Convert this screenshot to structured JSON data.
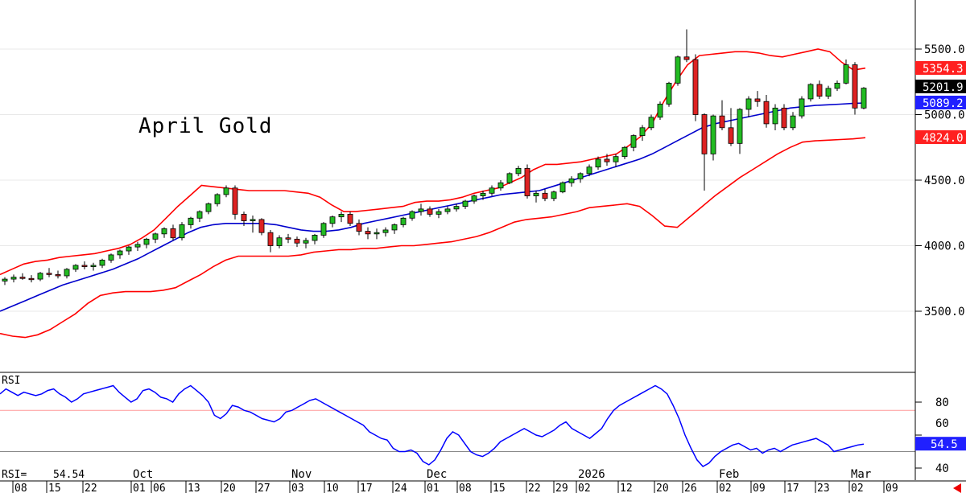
{
  "chart_data": [
    {
      "type": "candlestick",
      "title": "April Gold",
      "ylim": [
        3200,
        5700
      ],
      "y_ticks": [
        3500.0,
        4000.0,
        4500.0,
        5000.0,
        5500.0
      ],
      "y_tick_labels": [
        "3500.0",
        "4000.0",
        "4500.0",
        "5000.0",
        "5500.0"
      ],
      "month_labels": [
        "Oct",
        "Nov",
        "Dec",
        "2026",
        "Feb",
        "Mar"
      ],
      "day_labels": [
        "08",
        "15",
        "22",
        "01",
        "06",
        "13",
        "20",
        "27",
        "03",
        "10",
        "17",
        "24",
        "01",
        "08",
        "15",
        "22",
        "29",
        "02",
        "12",
        "20",
        "26",
        "02",
        "09",
        "17",
        "23",
        "02",
        "09"
      ],
      "price_labels": [
        {
          "value": 5354.3,
          "text": "5354.3",
          "color": "#ff2020"
        },
        {
          "value": 5201.9,
          "text": "5201.9",
          "color": "#000000"
        },
        {
          "value": 5089.2,
          "text": "5089.2",
          "color": "#2020ff"
        },
        {
          "value": 4824.0,
          "text": "4824.0",
          "color": "#ff2020"
        }
      ],
      "series": [
        {
          "name": "",
          "color": "#ff0000",
          "values": [
            3780,
            3820,
            3860,
            3880,
            3890,
            3910,
            3920,
            3930,
            3940,
            3960,
            3980,
            4010,
            4060,
            4120,
            4210,
            4300,
            4380,
            4460,
            4450,
            4440,
            4430,
            4420,
            4420,
            4420,
            4420,
            4410,
            4400,
            4370,
            4310,
            4260,
            4260,
            4270,
            4280,
            4290,
            4300,
            4330,
            4340,
            4340,
            4350,
            4370,
            4400,
            4420,
            4440,
            4480,
            4520,
            4580,
            4620,
            4620,
            4630,
            4640,
            4660,
            4680,
            4700,
            4760,
            4830,
            4930,
            5100,
            5250,
            5380,
            5450,
            5460,
            5470,
            5480,
            5480,
            5470,
            5450,
            5440,
            5460,
            5480,
            5500,
            5480,
            5400,
            5340,
            5354.3
          ]
        },
        {
          "name": "",
          "color": "#0000cc",
          "values": [
            3500,
            3540,
            3580,
            3620,
            3660,
            3700,
            3730,
            3760,
            3790,
            3820,
            3860,
            3900,
            3950,
            4000,
            4050,
            4100,
            4140,
            4160,
            4170,
            4170,
            4170,
            4170,
            4160,
            4140,
            4120,
            4110,
            4110,
            4120,
            4140,
            4170,
            4190,
            4210,
            4230,
            4250,
            4270,
            4290,
            4310,
            4330,
            4350,
            4370,
            4390,
            4400,
            4410,
            4420,
            4450,
            4480,
            4510,
            4540,
            4570,
            4600,
            4630,
            4660,
            4700,
            4750,
            4800,
            4850,
            4900,
            4930,
            4950,
            4970,
            4990,
            5010,
            5030,
            5050,
            5060,
            5070,
            5075,
            5080,
            5085,
            5089.2
          ]
        },
        {
          "name": "",
          "color": "#ff0000",
          "values": [
            3330,
            3310,
            3300,
            3320,
            3360,
            3420,
            3480,
            3560,
            3620,
            3640,
            3650,
            3650,
            3650,
            3660,
            3680,
            3730,
            3780,
            3840,
            3890,
            3920,
            3920,
            3920,
            3920,
            3920,
            3930,
            3950,
            3960,
            3970,
            3970,
            3980,
            3980,
            3990,
            4000,
            4000,
            4010,
            4020,
            4030,
            4050,
            4070,
            4100,
            4140,
            4180,
            4200,
            4210,
            4220,
            4240,
            4260,
            4290,
            4300,
            4310,
            4320,
            4300,
            4230,
            4150,
            4140,
            4220,
            4300,
            4380,
            4450,
            4520,
            4580,
            4640,
            4700,
            4750,
            4790,
            4800,
            4805,
            4810,
            4815,
            4824.0
          ]
        }
      ],
      "candles_ohlc": [
        [
          3730,
          3760,
          3700,
          3745
        ],
        [
          3745,
          3780,
          3720,
          3760
        ],
        [
          3760,
          3790,
          3740,
          3750
        ],
        [
          3750,
          3775,
          3720,
          3745
        ],
        [
          3745,
          3800,
          3730,
          3790
        ],
        [
          3790,
          3830,
          3760,
          3780
        ],
        [
          3780,
          3810,
          3750,
          3770
        ],
        [
          3770,
          3830,
          3750,
          3820
        ],
        [
          3820,
          3860,
          3800,
          3850
        ],
        [
          3850,
          3880,
          3820,
          3840
        ],
        [
          3840,
          3870,
          3810,
          3850
        ],
        [
          3850,
          3900,
          3830,
          3890
        ],
        [
          3890,
          3940,
          3870,
          3930
        ],
        [
          3930,
          3970,
          3900,
          3960
        ],
        [
          3960,
          4000,
          3930,
          3990
        ],
        [
          3990,
          4030,
          3960,
          4010
        ],
        [
          4010,
          4060,
          3980,
          4050
        ],
        [
          4050,
          4100,
          4020,
          4090
        ],
        [
          4090,
          4140,
          4060,
          4130
        ],
        [
          4130,
          4160,
          4040,
          4060
        ],
        [
          4060,
          4180,
          4040,
          4160
        ],
        [
          4160,
          4220,
          4130,
          4210
        ],
        [
          4210,
          4270,
          4180,
          4260
        ],
        [
          4260,
          4330,
          4240,
          4320
        ],
        [
          4320,
          4400,
          4300,
          4390
        ],
        [
          4390,
          4460,
          4370,
          4440
        ],
        [
          4440,
          4460,
          4200,
          4240
        ],
        [
          4240,
          4260,
          4150,
          4190
        ],
        [
          4190,
          4230,
          4100,
          4200
        ],
        [
          4200,
          4210,
          4080,
          4100
        ],
        [
          4100,
          4120,
          3950,
          4000
        ],
        [
          4000,
          4080,
          3980,
          4060
        ],
        [
          4060,
          4090,
          4020,
          4050
        ],
        [
          4050,
          4070,
          3990,
          4020
        ],
        [
          4020,
          4060,
          3980,
          4040
        ],
        [
          4040,
          4090,
          4010,
          4080
        ],
        [
          4080,
          4180,
          4060,
          4170
        ],
        [
          4170,
          4230,
          4140,
          4220
        ],
        [
          4220,
          4260,
          4180,
          4240
        ],
        [
          4240,
          4260,
          4150,
          4170
        ],
        [
          4170,
          4200,
          4080,
          4110
        ],
        [
          4110,
          4140,
          4050,
          4090
        ],
        [
          4090,
          4130,
          4050,
          4100
        ],
        [
          4100,
          4140,
          4070,
          4120
        ],
        [
          4120,
          4170,
          4090,
          4160
        ],
        [
          4160,
          4220,
          4140,
          4210
        ],
        [
          4210,
          4270,
          4190,
          4260
        ],
        [
          4260,
          4320,
          4230,
          4280
        ],
        [
          4280,
          4300,
          4220,
          4240
        ],
        [
          4240,
          4280,
          4210,
          4260
        ],
        [
          4260,
          4300,
          4240,
          4280
        ],
        [
          4280,
          4320,
          4260,
          4300
        ],
        [
          4300,
          4350,
          4280,
          4340
        ],
        [
          4340,
          4390,
          4320,
          4380
        ],
        [
          4380,
          4420,
          4350,
          4400
        ],
        [
          4400,
          4460,
          4380,
          4440
        ],
        [
          4440,
          4500,
          4420,
          4480
        ],
        [
          4480,
          4560,
          4470,
          4550
        ],
        [
          4550,
          4610,
          4530,
          4590
        ],
        [
          4590,
          4620,
          4360,
          4380
        ],
        [
          4380,
          4420,
          4330,
          4400
        ],
        [
          4400,
          4430,
          4340,
          4360
        ],
        [
          4360,
          4420,
          4340,
          4410
        ],
        [
          4410,
          4490,
          4400,
          4480
        ],
        [
          4480,
          4530,
          4450,
          4510
        ],
        [
          4510,
          4560,
          4480,
          4550
        ],
        [
          4550,
          4620,
          4530,
          4600
        ],
        [
          4600,
          4680,
          4580,
          4660
        ],
        [
          4660,
          4700,
          4610,
          4640
        ],
        [
          4640,
          4700,
          4600,
          4680
        ],
        [
          4680,
          4760,
          4660,
          4750
        ],
        [
          4750,
          4850,
          4720,
          4840
        ],
        [
          4840,
          4920,
          4800,
          4900
        ],
        [
          4900,
          5000,
          4880,
          4980
        ],
        [
          4980,
          5100,
          4960,
          5080
        ],
        [
          5080,
          5250,
          5060,
          5240
        ],
        [
          5240,
          5450,
          5220,
          5440
        ],
        [
          5440,
          5650,
          5400,
          5420
        ],
        [
          5420,
          5460,
          4950,
          5000
        ],
        [
          5000,
          5010,
          4420,
          4700
        ],
        [
          4700,
          5000,
          4650,
          4990
        ],
        [
          4990,
          5110,
          4880,
          4900
        ],
        [
          4900,
          5050,
          4760,
          4780
        ],
        [
          4780,
          5050,
          4700,
          5040
        ],
        [
          5040,
          5140,
          4980,
          5120
        ],
        [
          5120,
          5180,
          5060,
          5100
        ],
        [
          5100,
          5150,
          4900,
          4930
        ],
        [
          4930,
          5080,
          4880,
          5050
        ],
        [
          5050,
          5080,
          4880,
          4900
        ],
        [
          4900,
          5020,
          4880,
          4990
        ],
        [
          4990,
          5140,
          4970,
          5120
        ],
        [
          5120,
          5240,
          5100,
          5230
        ],
        [
          5230,
          5260,
          5120,
          5140
        ],
        [
          5140,
          5220,
          5120,
          5200
        ],
        [
          5200,
          5260,
          5180,
          5240
        ],
        [
          5240,
          5420,
          5230,
          5380
        ],
        [
          5380,
          5400,
          5000,
          5050
        ],
        [
          5050,
          5210,
          5040,
          5201.9
        ]
      ]
    },
    {
      "type": "line",
      "title": "RSI",
      "ylim": [
        36,
        96
      ],
      "y_ticks": [
        40,
        60,
        80
      ],
      "y_tick_labels": [
        "40",
        "60",
        "80"
      ],
      "reference_lines": [
        50,
        75
      ],
      "current_label": "RSI=",
      "current_value": "54.54",
      "current_badge": "54.5",
      "series": [
        {
          "name": "",
          "color": "#0000ff",
          "values": [
            85,
            88,
            86,
            84,
            86,
            85,
            84,
            85,
            87,
            88,
            85,
            83,
            80,
            82,
            85,
            86,
            87,
            88,
            89,
            90,
            86,
            83,
            80,
            82,
            87,
            88,
            86,
            83,
            82,
            80,
            85,
            88,
            90,
            87,
            84,
            80,
            72,
            70,
            73,
            78,
            77,
            75,
            74,
            72,
            70,
            69,
            68,
            70,
            74,
            75,
            77,
            79,
            81,
            82,
            80,
            78,
            76,
            74,
            72,
            70,
            68,
            66,
            62,
            60,
            58,
            57,
            52,
            50,
            50,
            51,
            49,
            44,
            42,
            45,
            51,
            58,
            62,
            60,
            55,
            50,
            48,
            47,
            49,
            52,
            56,
            58,
            60,
            62,
            64,
            62,
            60,
            59,
            61,
            63,
            66,
            68,
            64,
            62,
            60,
            58,
            61,
            64,
            70,
            75,
            78,
            80,
            82,
            84,
            86,
            88,
            90,
            88,
            85,
            78,
            70,
            60,
            52,
            45,
            41,
            43,
            47,
            50,
            52,
            54,
            55,
            53,
            51,
            52,
            49,
            51,
            52,
            50,
            52,
            54,
            55,
            56,
            57,
            58,
            56,
            54,
            50,
            51,
            52,
            53,
            54,
            54.54
          ]
        }
      ]
    }
  ]
}
